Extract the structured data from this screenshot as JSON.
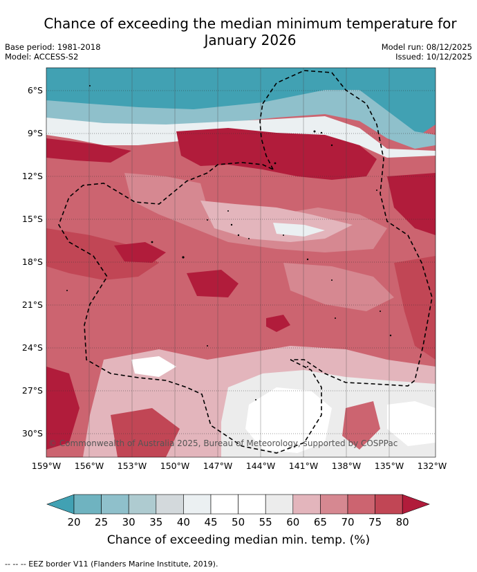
{
  "title_line1": "Chance of exceeding the median minimum temperature for",
  "title_line2": "January 2026",
  "base_period": "Base period: 1981-2018",
  "model": "Model: ACCESS-S2",
  "model_run": "Model run: 08/12/2025",
  "issued": "Issued: 10/12/2025",
  "lat_labels": [
    "6°S",
    "9°S",
    "12°S",
    "15°S",
    "18°S",
    "21°S",
    "24°S",
    "27°S",
    "30°S"
  ],
  "lon_labels": [
    "159°W",
    "156°W",
    "153°W",
    "150°W",
    "147°W",
    "144°W",
    "141°W",
    "138°W",
    "135°W",
    "132°W"
  ],
  "colorbar_ticks": [
    "20",
    "25",
    "30",
    "35",
    "40",
    "45",
    "50",
    "55",
    "60",
    "65",
    "70",
    "75",
    "80"
  ],
  "colorbar_label": "Chance of exceeding median min. temp. (%)",
  "copyright": "© Commonwealth of Australia 2025, Bureau of Meteorology, supported by COSPPac",
  "footer": "-- -- -- EEZ border V11 (Flanders Marine Institute, 2019).",
  "colors": {
    "lt20": "#41a1b3",
    "c20_25": "#6fb3c0",
    "c25_30": "#8fc0cb",
    "c30_35": "#aecbd0",
    "c35_40": "#d3d9dc",
    "c40_45": "#ebf0f2",
    "c45_50": "#ffffff",
    "c50_55": "#ffffff",
    "c55_60": "#ececec",
    "c60_65": "#e3b5bc",
    "c65_70": "#d68891",
    "c70_75": "#cc6470",
    "c75_80": "#c14655",
    "gt80": "#b11c3b"
  }
}
